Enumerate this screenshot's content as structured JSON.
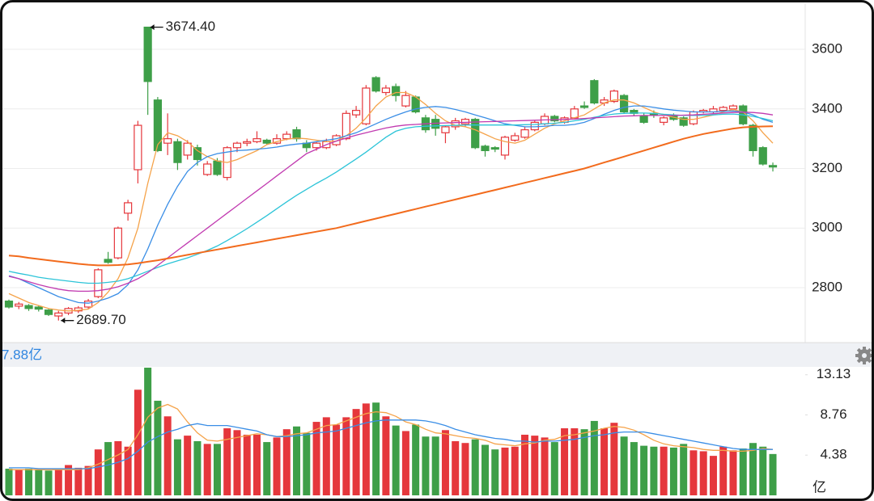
{
  "chart_data": [
    {
      "type": "candlestick",
      "up_color": "#e5373c",
      "down_color": "#3e9f48",
      "open": [
        2755,
        2738,
        2740,
        2735,
        2725,
        2705,
        2715,
        2722,
        2735,
        2770,
        2895,
        2900,
        3050,
        3196,
        3674.4,
        3430,
        3285,
        3290,
        3245,
        3270,
        3180,
        3225,
        3170,
        3270,
        3285,
        3290,
        3295,
        3285,
        3300,
        3330,
        3285,
        3270,
        3270,
        3280,
        3300,
        3380,
        3350,
        3505,
        3455,
        3475,
        3410,
        3440,
        3370,
        3365,
        3320,
        3340,
        3350,
        3365,
        3275,
        3270,
        3245,
        3295,
        3305,
        3330,
        3350,
        3375,
        3355,
        3370,
        3410,
        3495,
        3420,
        3425,
        3445,
        3395,
        3375,
        3385,
        3355,
        3375,
        3370,
        3350,
        3390,
        3390,
        3395,
        3400,
        3410,
        3345,
        3270,
        3210
      ],
      "high": [
        2760,
        2752,
        2745,
        2740,
        2728,
        2722,
        2735,
        2738,
        2762,
        2865,
        2920,
        3005,
        3095,
        3360,
        3674.4,
        3440,
        3385,
        3300,
        3295,
        3280,
        3225,
        3235,
        3275,
        3290,
        3300,
        3325,
        3300,
        3315,
        3325,
        3340,
        3295,
        3290,
        3300,
        3315,
        3395,
        3410,
        3480,
        3510,
        3480,
        3485,
        3460,
        3445,
        3380,
        3380,
        3345,
        3370,
        3370,
        3370,
        3280,
        3275,
        3310,
        3320,
        3340,
        3360,
        3385,
        3380,
        3375,
        3410,
        3425,
        3500,
        3440,
        3465,
        3450,
        3400,
        3385,
        3395,
        3375,
        3385,
        3375,
        3395,
        3400,
        3410,
        3410,
        3415,
        3415,
        3350,
        3275,
        3220
      ],
      "low": [
        2730,
        2728,
        2722,
        2720,
        2705,
        2689.7,
        2708,
        2715,
        2730,
        2765,
        2880,
        2895,
        3025,
        3150,
        3380,
        3255,
        3245,
        3195,
        3230,
        3210,
        3175,
        3175,
        3160,
        3255,
        3275,
        3285,
        3280,
        3280,
        3295,
        3290,
        3255,
        3260,
        3265,
        3275,
        3295,
        3370,
        3345,
        3455,
        3445,
        3425,
        3405,
        3385,
        3320,
        3310,
        3285,
        3330,
        3340,
        3265,
        3240,
        3255,
        3230,
        3290,
        3300,
        3325,
        3345,
        3355,
        3350,
        3365,
        3400,
        3415,
        3410,
        3420,
        3385,
        3375,
        3350,
        3370,
        3345,
        3360,
        3340,
        3345,
        3385,
        3385,
        3390,
        3395,
        3345,
        3240,
        3210,
        3190
      ],
      "close": [
        2735,
        2745,
        2730,
        2728,
        2710,
        2715,
        2730,
        2732,
        2755,
        2860,
        2885,
        3000,
        3085,
        3345,
        3492,
        3260,
        3300,
        3220,
        3285,
        3230,
        3215,
        3180,
        3270,
        3285,
        3290,
        3300,
        3285,
        3300,
        3315,
        3300,
        3270,
        3285,
        3290,
        3310,
        3385,
        3395,
        3470,
        3460,
        3470,
        3445,
        3445,
        3390,
        3330,
        3335,
        3340,
        3360,
        3365,
        3270,
        3260,
        3265,
        3305,
        3310,
        3330,
        3355,
        3375,
        3360,
        3370,
        3400,
        3405,
        3420,
        3430,
        3460,
        3390,
        3385,
        3355,
        3380,
        3370,
        3365,
        3345,
        3390,
        3395,
        3400,
        3405,
        3410,
        3350,
        3260,
        3215,
        3205
      ],
      "series": [
        {
          "color": "#f5a34a",
          "values": [
            2780,
            2765,
            2750,
            2740,
            2730,
            2725,
            2722,
            2724,
            2728,
            2750,
            2785,
            2830,
            2900,
            3000,
            3150,
            3280,
            3320,
            3310,
            3290,
            3260,
            3240,
            3225,
            3220,
            3230,
            3245,
            3260,
            3280,
            3290,
            3298,
            3302,
            3300,
            3295,
            3290,
            3292,
            3310,
            3335,
            3370,
            3410,
            3440,
            3455,
            3455,
            3440,
            3415,
            3385,
            3360,
            3345,
            3340,
            3330,
            3315,
            3300,
            3290,
            3285,
            3295,
            3315,
            3335,
            3350,
            3360,
            3370,
            3380,
            3400,
            3420,
            3430,
            3430,
            3420,
            3405,
            3390,
            3380,
            3372,
            3365,
            3365,
            3372,
            3380,
            3390,
            3398,
            3390,
            3360,
            3320,
            3285
          ]
        },
        {
          "color": "#3a8ee6",
          "values": [
            2840,
            2830,
            2815,
            2800,
            2785,
            2770,
            2760,
            2750,
            2748,
            2755,
            2765,
            2780,
            2810,
            2860,
            2930,
            3010,
            3080,
            3140,
            3190,
            3220,
            3240,
            3250,
            3255,
            3260,
            3262,
            3265,
            3268,
            3272,
            3278,
            3282,
            3285,
            3290,
            3295,
            3300,
            3310,
            3320,
            3335,
            3350,
            3365,
            3378,
            3390,
            3400,
            3405,
            3408,
            3405,
            3398,
            3390,
            3380,
            3370,
            3360,
            3350,
            3345,
            3340,
            3340,
            3342,
            3345,
            3345,
            3348,
            3355,
            3368,
            3382,
            3395,
            3405,
            3410,
            3410,
            3405,
            3400,
            3396,
            3393,
            3390,
            3390,
            3390,
            3392,
            3393,
            3390,
            3380,
            3365,
            3355
          ]
        },
        {
          "color": "#2cc4d8",
          "values": [
            2855,
            2848,
            2842,
            2835,
            2830,
            2826,
            2822,
            2818,
            2815,
            2815,
            2818,
            2822,
            2830,
            2842,
            2855,
            2868,
            2880,
            2890,
            2900,
            2912,
            2925,
            2940,
            2958,
            2978,
            2998,
            3020,
            3042,
            3065,
            3088,
            3110,
            3130,
            3150,
            3168,
            3188,
            3210,
            3232,
            3255,
            3280,
            3305,
            3325,
            3335,
            3340,
            3342,
            3343,
            3344,
            3345,
            3346,
            3346,
            3346,
            3346,
            3346,
            3346,
            3347,
            3348,
            3350,
            3352,
            3355,
            3360,
            3365,
            3372,
            3378,
            3383,
            3385,
            3386,
            3386,
            3385,
            3382,
            3380,
            3378,
            3378,
            3378,
            3380,
            3382,
            3383,
            3380,
            3375,
            3368,
            3360
          ]
        },
        {
          "color": "#c13ab0",
          "values": [
            2838,
            2830,
            2820,
            2810,
            2802,
            2795,
            2790,
            2788,
            2788,
            2790,
            2795,
            2803,
            2815,
            2830,
            2850,
            2875,
            2900,
            2925,
            2950,
            2975,
            3000,
            3025,
            3050,
            3075,
            3100,
            3125,
            3150,
            3175,
            3200,
            3225,
            3250,
            3265,
            3280,
            3292,
            3302,
            3312,
            3320,
            3328,
            3336,
            3342,
            3346,
            3348,
            3350,
            3352,
            3353,
            3354,
            3355,
            3356,
            3357,
            3358,
            3359,
            3360,
            3361,
            3362,
            3363,
            3364,
            3365,
            3366,
            3368,
            3370,
            3372,
            3374,
            3376,
            3377,
            3378,
            3378,
            3378,
            3378,
            3379,
            3380,
            3382,
            3384,
            3386,
            3388,
            3389,
            3388,
            3385,
            3380
          ]
        },
        {
          "color": "#f26b1d",
          "width": 2,
          "values": [
            2908,
            2905,
            2900,
            2896,
            2892,
            2888,
            2884,
            2880,
            2877,
            2875,
            2875,
            2876,
            2878,
            2882,
            2887,
            2892,
            2898,
            2904,
            2910,
            2916,
            2922,
            2928,
            2934,
            2940,
            2946,
            2952,
            2958,
            2964,
            2970,
            2976,
            2982,
            2988,
            2994,
            3000,
            3008,
            3016,
            3024,
            3032,
            3040,
            3048,
            3056,
            3064,
            3072,
            3080,
            3088,
            3096,
            3104,
            3112,
            3120,
            3128,
            3136,
            3144,
            3152,
            3160,
            3168,
            3176,
            3184,
            3192,
            3200,
            3210,
            3220,
            3230,
            3240,
            3250,
            3260,
            3270,
            3280,
            3290,
            3300,
            3308,
            3316,
            3322,
            3328,
            3334,
            3338,
            3340,
            3341,
            3342
          ]
        }
      ],
      "max_label": "3674.40",
      "min_label": "2689.70",
      "ylim": [
        2621,
        3752
      ],
      "yticks": [
        2800,
        3000,
        3200,
        3400,
        3600
      ],
      "grid": true
    },
    {
      "type": "bar",
      "title": "7.88亿",
      "y_unit_label": "亿",
      "values": [
        2.9,
        2.8,
        2.9,
        2.8,
        2.7,
        2.8,
        3.3,
        3.0,
        3.2,
        5.0,
        5.8,
        5.9,
        5.3,
        11.5,
        13.9,
        10.3,
        8.6,
        6.1,
        6.5,
        5.9,
        5.6,
        5.6,
        7.3,
        7.1,
        6.6,
        6.6,
        5.8,
        6.3,
        7.2,
        7.5,
        6.8,
        8.0,
        8.5,
        7.7,
        8.5,
        9.4,
        10.0,
        10.1,
        8.6,
        7.6,
        7.0,
        7.7,
        6.4,
        6.4,
        7.1,
        5.9,
        5.7,
        6.1,
        5.5,
        5.0,
        5.2,
        5.3,
        6.6,
        6.5,
        6.3,
        5.8,
        7.3,
        7.3,
        7.2,
        8.1,
        7.3,
        7.9,
        6.4,
        5.8,
        5.4,
        5.3,
        5.3,
        5.2,
        5.6,
        4.9,
        4.8,
        4.3,
        5.3,
        4.9,
        5.1,
        5.7,
        5.3,
        4.5
      ],
      "series": [
        {
          "color": "#f5a34a",
          "values": [
            2.8,
            2.8,
            2.8,
            2.8,
            2.8,
            2.8,
            2.8,
            2.8,
            3.0,
            3.4,
            3.9,
            4.4,
            5.0,
            6.6,
            8.5,
            9.5,
            9.9,
            9.4,
            8.0,
            6.8,
            6.0,
            5.9,
            6.1,
            6.3,
            6.5,
            6.7,
            6.6,
            6.4,
            6.5,
            6.7,
            6.8,
            7.2,
            7.6,
            7.7,
            8.1,
            8.5,
            8.9,
            9.1,
            9.0,
            8.6,
            8.0,
            7.7,
            7.2,
            6.8,
            6.7,
            6.5,
            6.3,
            6.2,
            6.0,
            5.6,
            5.5,
            5.4,
            5.6,
            5.7,
            6.0,
            6.1,
            6.5,
            6.6,
            6.8,
            7.0,
            7.3,
            7.5,
            7.4,
            7.1,
            6.6,
            6.0,
            5.6,
            5.4,
            5.3,
            5.2,
            5.0,
            4.9,
            4.9,
            4.8,
            4.8,
            4.9,
            5.1,
            5.0
          ]
        },
        {
          "color": "#3a8ee6",
          "values": [
            3.0,
            3.0,
            3.0,
            2.9,
            2.9,
            2.9,
            2.9,
            2.9,
            2.9,
            3.1,
            3.3,
            3.6,
            4.0,
            4.8,
            5.8,
            6.4,
            6.9,
            7.2,
            7.6,
            7.8,
            7.6,
            7.6,
            7.6,
            7.4,
            7.2,
            7.0,
            6.6,
            6.4,
            6.4,
            6.5,
            6.6,
            6.8,
            6.9,
            7.0,
            7.3,
            7.6,
            7.9,
            8.1,
            8.2,
            8.2,
            8.2,
            8.2,
            8.1,
            7.9,
            7.6,
            7.2,
            6.9,
            6.6,
            6.4,
            6.2,
            6.1,
            5.9,
            5.9,
            5.8,
            5.9,
            5.9,
            6.0,
            6.1,
            6.3,
            6.5,
            6.6,
            6.8,
            6.9,
            6.9,
            6.9,
            6.7,
            6.5,
            6.3,
            6.1,
            5.9,
            5.7,
            5.5,
            5.3,
            5.1,
            5.0,
            5.0,
            5.0,
            5.0
          ]
        }
      ],
      "ylim": [
        0,
        13.9
      ],
      "yticks": [
        4.38,
        8.76,
        13.13
      ],
      "grid": false
    }
  ]
}
